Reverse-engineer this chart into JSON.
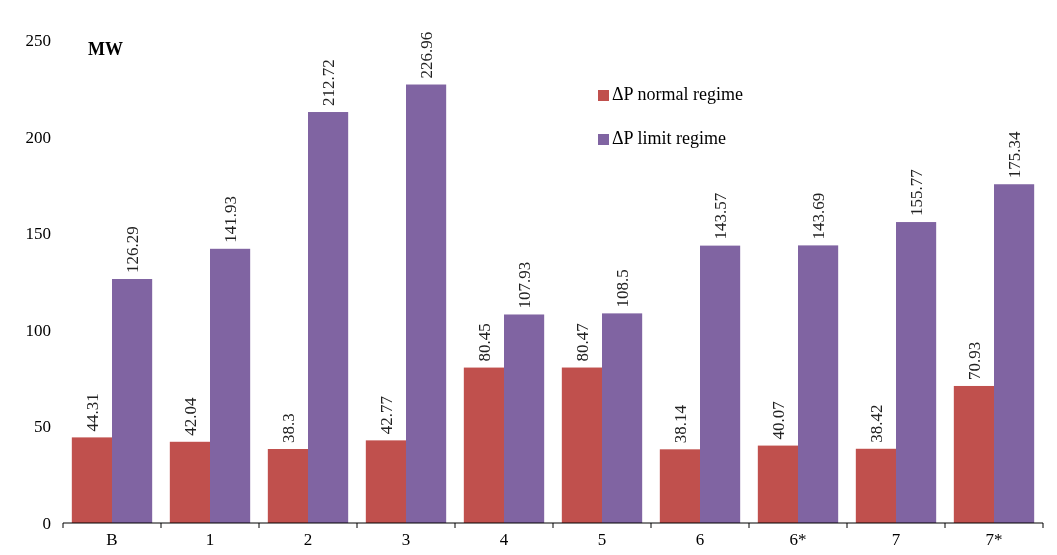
{
  "chart_data": {
    "type": "bar",
    "ylabel": "MW",
    "categories": [
      "B",
      "1",
      "2",
      "3",
      "4",
      "5",
      "6",
      "6*",
      "7",
      "7*"
    ],
    "series": [
      {
        "name": "ΔP normal regime",
        "color": "#c0504d",
        "values": [
          44.31,
          42.04,
          38.3,
          42.77,
          80.45,
          80.47,
          38.14,
          40.07,
          38.42,
          70.93
        ]
      },
      {
        "name": "ΔP limit regime",
        "color": "#8064a2",
        "values": [
          126.29,
          141.93,
          212.72,
          226.96,
          107.93,
          108.5,
          143.57,
          143.69,
          155.77,
          175.34
        ]
      }
    ],
    "ylim": [
      0,
      250
    ],
    "yticks": [
      0,
      50,
      100,
      150,
      200,
      250
    ],
    "grid": false,
    "legend": "top right",
    "data_labels": true
  }
}
